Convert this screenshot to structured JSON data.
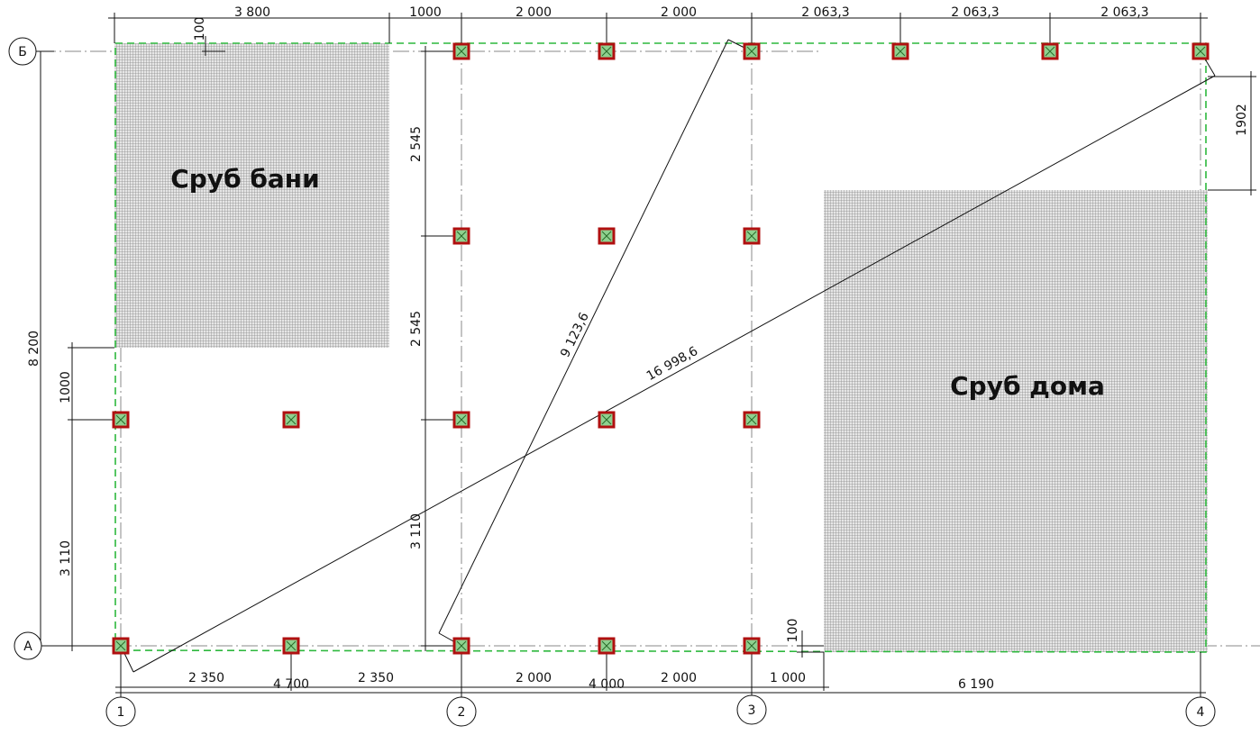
{
  "axes": {
    "rows": [
      "Б",
      "А"
    ],
    "columns": [
      "1",
      "2",
      "3",
      "4"
    ]
  },
  "dimensions": {
    "top": [
      "3 800",
      "1000",
      "2 000",
      "2 000",
      "2 063,3",
      "2 063,3",
      "2 063,3"
    ],
    "bottom_inner": [
      "2 350",
      "2 350",
      "2 000",
      "2 000",
      "1 000"
    ],
    "bottom_outer": [
      "4 700",
      "4 000",
      "6 190"
    ],
    "left": [
      "8 200",
      "1000",
      "3 110"
    ],
    "middle": [
      "2 545",
      "2 545",
      "3 110"
    ],
    "right": [
      "1902"
    ],
    "offsets": [
      "100",
      "100"
    ],
    "diagonals": [
      "9 123,6",
      "16 998,6"
    ]
  },
  "buildings": [
    "Сруб бани",
    "Сруб дома"
  ]
}
